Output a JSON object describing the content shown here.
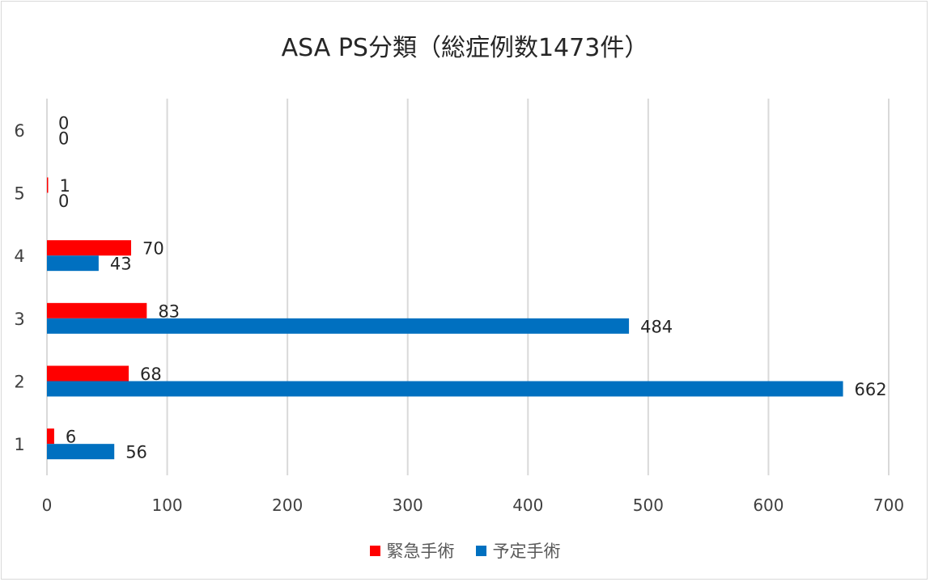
{
  "chart_data": {
    "type": "bar",
    "orientation": "horizontal",
    "title": "ASA PS分類（総症例数1473件）",
    "categories": [
      "1",
      "2",
      "3",
      "4",
      "5",
      "6"
    ],
    "series": [
      {
        "name": "緊急手術",
        "color": "#ff0000",
        "values": [
          6,
          68,
          83,
          70,
          1,
          0
        ]
      },
      {
        "name": "予定手術",
        "color": "#0070c0",
        "values": [
          56,
          662,
          484,
          43,
          0,
          0
        ]
      }
    ],
    "xlim": [
      0,
      700
    ],
    "xticks": [
      "0",
      "100",
      "200",
      "300",
      "400",
      "500",
      "600",
      "700"
    ],
    "grid": true,
    "data_labels": true,
    "legend_position": "bottom"
  }
}
